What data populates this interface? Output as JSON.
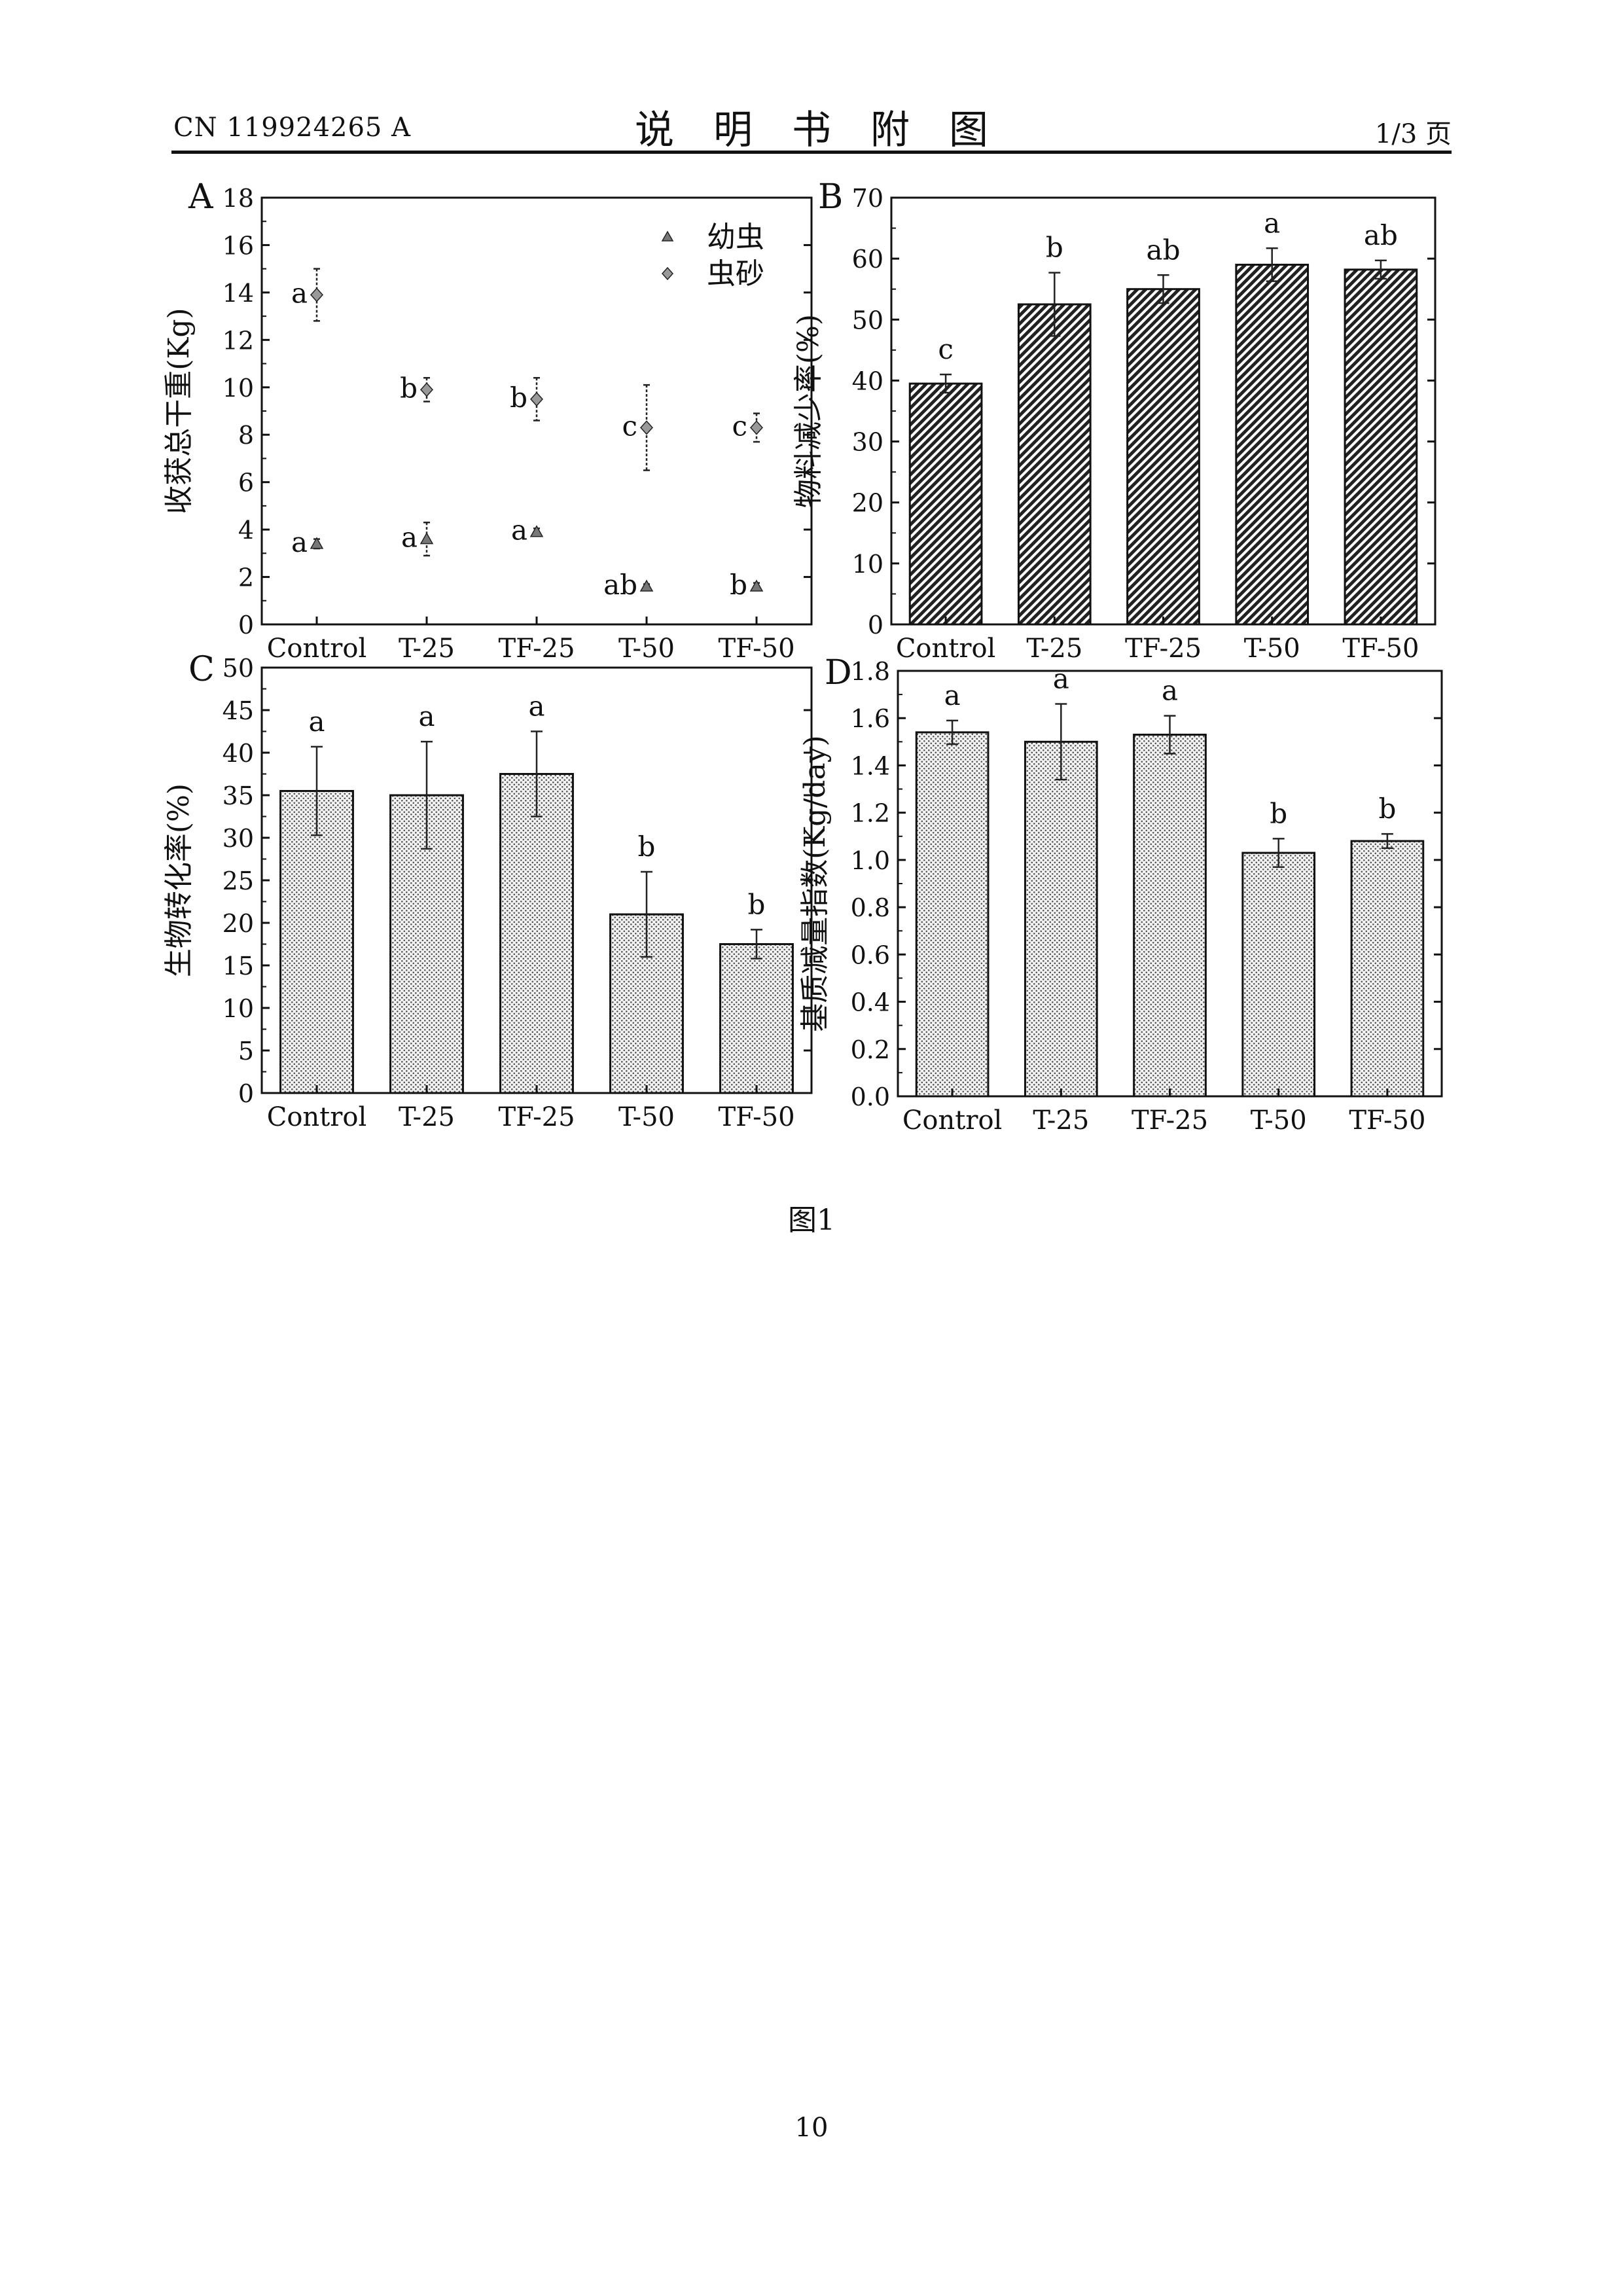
{
  "header": {
    "doc_number": "CN 119924265 A",
    "title": "说明书附图",
    "page_info": "1/3 页"
  },
  "figure": {
    "caption": "图1"
  },
  "footer": {
    "page_number": "10"
  },
  "chart_data": [
    {
      "panel_label": "A",
      "type": "scatter",
      "ylabel": "收获总干重(Kg)",
      "categories": [
        "Control",
        "T-25",
        "TF-25",
        "T-50",
        "TF-50"
      ],
      "ylim": [
        0,
        18
      ],
      "yticks": [
        0,
        2,
        4,
        6,
        8,
        10,
        12,
        14,
        16,
        18
      ],
      "legend": "top-right",
      "series": [
        {
          "name": "幼虫",
          "marker": "triangle",
          "values": [
            3.4,
            3.6,
            3.9,
            1.6,
            1.6
          ],
          "errors": [
            0.2,
            0.7,
            0.15,
            0.1,
            0.15
          ],
          "letters": [
            "a",
            "a",
            "a",
            "ab",
            "b"
          ]
        },
        {
          "name": "虫砂",
          "marker": "diamond",
          "values": [
            13.9,
            9.9,
            9.5,
            8.3,
            8.3
          ],
          "errors": [
            1.1,
            0.5,
            0.9,
            1.8,
            0.6
          ],
          "letters": [
            "a",
            "b",
            "b",
            "c",
            "c"
          ]
        }
      ]
    },
    {
      "panel_label": "B",
      "type": "bar",
      "ylabel": "物料减少率(%)",
      "categories": [
        "Control",
        "T-25",
        "TF-25",
        "T-50",
        "TF-50"
      ],
      "ylim": [
        0,
        70
      ],
      "yticks": [
        0,
        10,
        20,
        30,
        40,
        50,
        60,
        70
      ],
      "values": [
        39.5,
        52.5,
        55.0,
        59.0,
        58.2
      ],
      "errors": [
        1.5,
        5.2,
        2.3,
        2.7,
        1.5
      ],
      "letters": [
        "c",
        "b",
        "ab",
        "a",
        "ab"
      ],
      "pattern": "diagonal"
    },
    {
      "panel_label": "C",
      "type": "bar",
      "ylabel": "生物转化率(%)",
      "categories": [
        "Control",
        "T-25",
        "TF-25",
        "T-50",
        "TF-50"
      ],
      "ylim": [
        0,
        50
      ],
      "yticks": [
        0,
        5,
        10,
        15,
        20,
        25,
        30,
        35,
        40,
        45,
        50
      ],
      "values": [
        35.5,
        35.0,
        37.5,
        21.0,
        17.5
      ],
      "errors": [
        5.2,
        6.3,
        5.0,
        5.0,
        1.7
      ],
      "letters": [
        "a",
        "a",
        "a",
        "b",
        "b"
      ],
      "pattern": "dots"
    },
    {
      "panel_label": "D",
      "type": "bar",
      "ylabel": "基质减量指数(Kg/day)",
      "categories": [
        "Control",
        "T-25",
        "TF-25",
        "T-50",
        "TF-50"
      ],
      "ylim": [
        0,
        1.8
      ],
      "yticks": [
        "0.0",
        "0.2",
        "0.4",
        "0.6",
        "0.8",
        "1.0",
        "1.2",
        "1.4",
        "1.6",
        "1.8"
      ],
      "values": [
        1.54,
        1.5,
        1.53,
        1.03,
        1.08
      ],
      "errors": [
        0.05,
        0.16,
        0.08,
        0.06,
        0.03
      ],
      "letters": [
        "a",
        "a",
        "a",
        "b",
        "b"
      ],
      "pattern": "dots"
    }
  ]
}
